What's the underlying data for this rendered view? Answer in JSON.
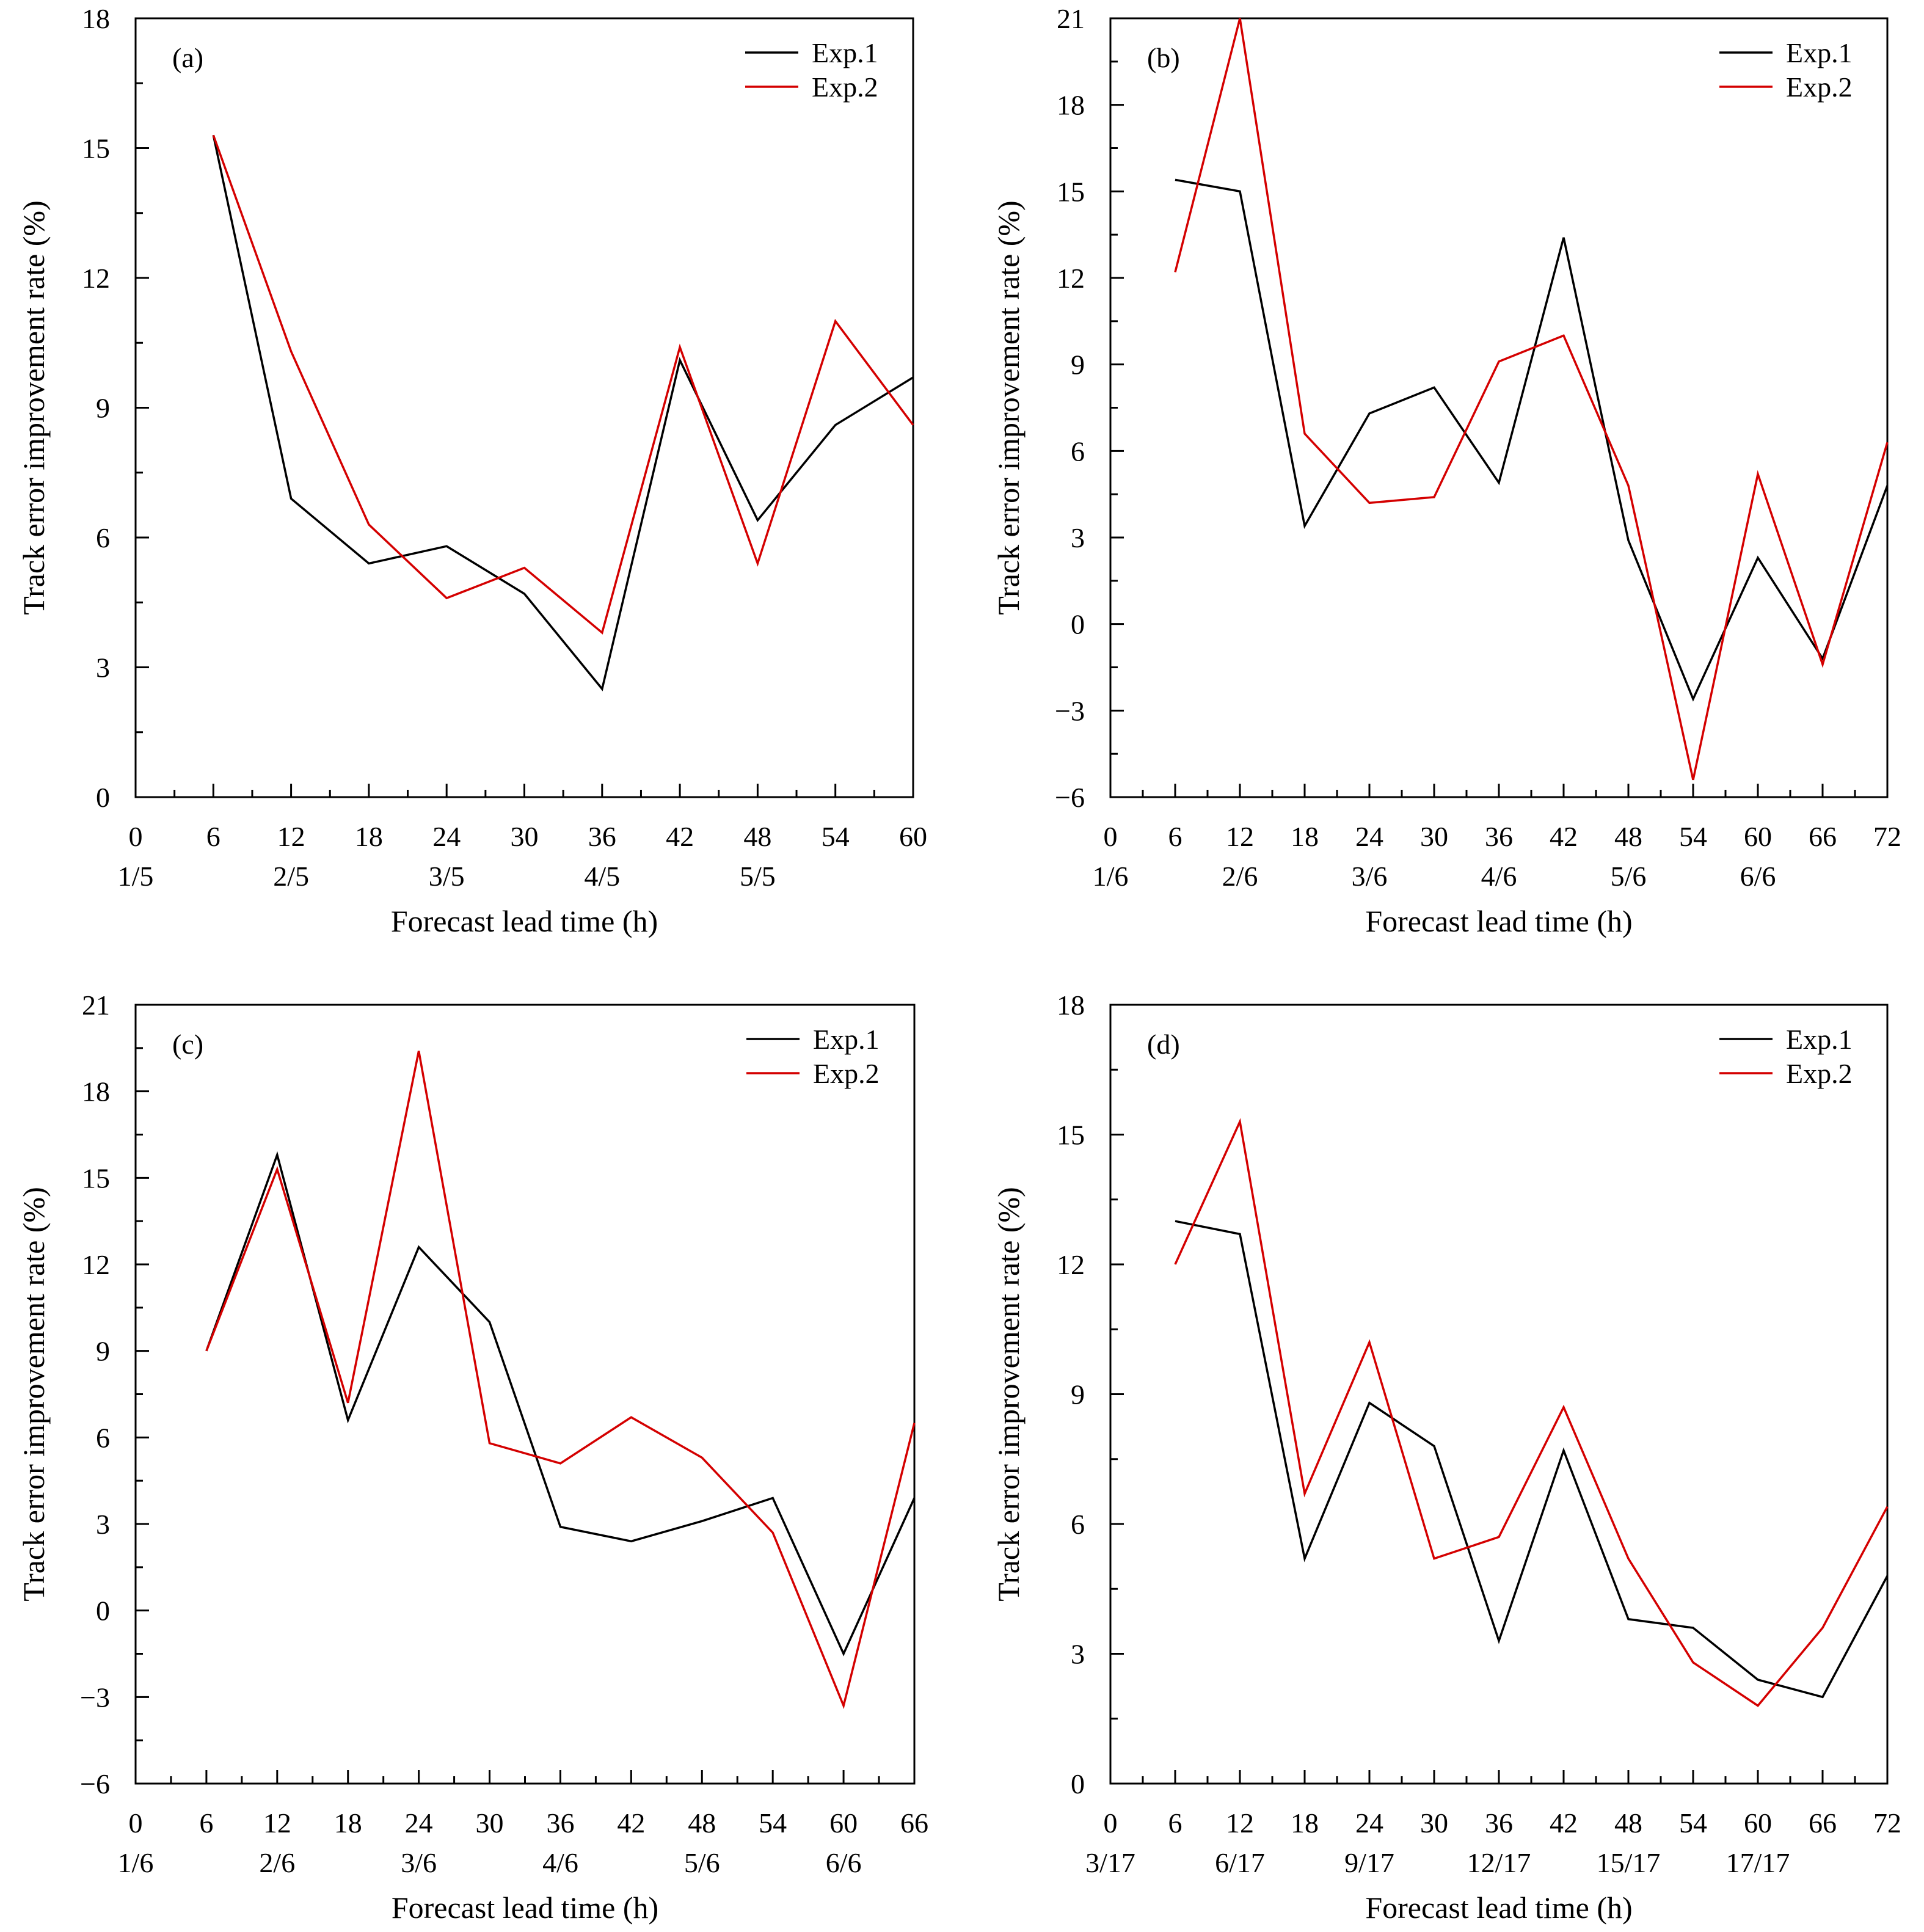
{
  "colors": {
    "exp1": "#000000",
    "exp2": "#d40000",
    "axis": "#000000"
  },
  "chart_data": [
    {
      "type": "line",
      "panel_label": "(a)",
      "xlabel": "Forecast lead time (h)",
      "ylabel": "Track error improvement rate (%)",
      "xlim": [
        0,
        60
      ],
      "ylim": [
        0,
        18
      ],
      "xticks": [
        0,
        6,
        12,
        18,
        24,
        30,
        36,
        42,
        48,
        54,
        60
      ],
      "yticks": [
        0,
        3,
        6,
        9,
        12,
        15,
        18
      ],
      "date_labels": [
        {
          "x": 0,
          "label": "1/5"
        },
        {
          "x": 12,
          "label": "2/5"
        },
        {
          "x": 24,
          "label": "3/5"
        },
        {
          "x": 36,
          "label": "4/5"
        },
        {
          "x": 48,
          "label": "5/5"
        }
      ],
      "legend": "top-right",
      "x": [
        6,
        12,
        18,
        24,
        30,
        36,
        42,
        48,
        54,
        60
      ],
      "series": [
        {
          "name": "Exp.1",
          "color_key": "exp1",
          "values": [
            15.3,
            6.9,
            5.4,
            5.8,
            4.7,
            2.5,
            10.1,
            6.4,
            8.6,
            9.7
          ]
        },
        {
          "name": "Exp.2",
          "color_key": "exp2",
          "values": [
            15.3,
            10.3,
            6.3,
            4.6,
            5.3,
            3.8,
            10.4,
            5.4,
            11.0,
            8.6
          ]
        }
      ]
    },
    {
      "type": "line",
      "panel_label": "(b)",
      "xlabel": "Forecast lead time (h)",
      "ylabel": "Track error improvement rate (%)",
      "xlim": [
        0,
        72
      ],
      "ylim": [
        -6,
        21
      ],
      "xticks": [
        0,
        6,
        12,
        18,
        24,
        30,
        36,
        42,
        48,
        54,
        60,
        66,
        72
      ],
      "yticks": [
        -6,
        -3,
        0,
        3,
        6,
        9,
        12,
        15,
        18,
        21
      ],
      "date_labels": [
        {
          "x": 0,
          "label": "1/6"
        },
        {
          "x": 12,
          "label": "2/6"
        },
        {
          "x": 24,
          "label": "3/6"
        },
        {
          "x": 36,
          "label": "4/6"
        },
        {
          "x": 48,
          "label": "5/6"
        },
        {
          "x": 60,
          "label": "6/6"
        }
      ],
      "legend": "top-right",
      "x": [
        6,
        12,
        18,
        24,
        30,
        36,
        42,
        48,
        54,
        60,
        66,
        72
      ],
      "series": [
        {
          "name": "Exp.1",
          "color_key": "exp1",
          "values": [
            15.4,
            15.0,
            3.4,
            7.3,
            8.2,
            4.9,
            13.4,
            2.9,
            -2.6,
            2.3,
            -1.2,
            4.8
          ]
        },
        {
          "name": "Exp.2",
          "color_key": "exp2",
          "values": [
            12.2,
            21.0,
            6.6,
            4.2,
            4.4,
            9.1,
            10.0,
            4.8,
            -5.4,
            5.2,
            -1.4,
            6.3
          ]
        }
      ]
    },
    {
      "type": "line",
      "panel_label": "(c)",
      "xlabel": "Forecast lead time (h)",
      "ylabel": "Track error improvement rate (%)",
      "xlim": [
        0,
        66
      ],
      "ylim": [
        -6,
        21
      ],
      "xticks": [
        0,
        6,
        12,
        18,
        24,
        30,
        36,
        42,
        48,
        54,
        60,
        66
      ],
      "yticks": [
        -6,
        -3,
        0,
        3,
        6,
        9,
        12,
        15,
        18,
        21
      ],
      "date_labels": [
        {
          "x": 0,
          "label": "1/6"
        },
        {
          "x": 12,
          "label": "2/6"
        },
        {
          "x": 24,
          "label": "3/6"
        },
        {
          "x": 36,
          "label": "4/6"
        },
        {
          "x": 48,
          "label": "5/6"
        },
        {
          "x": 60,
          "label": "6/6"
        }
      ],
      "legend": "top-right",
      "x": [
        6,
        12,
        18,
        24,
        30,
        36,
        42,
        48,
        54,
        60,
        66
      ],
      "series": [
        {
          "name": "Exp.1",
          "color_key": "exp1",
          "values": [
            9.0,
            15.8,
            6.6,
            12.6,
            10.0,
            2.9,
            2.4,
            3.1,
            3.9,
            -1.5,
            3.9
          ]
        },
        {
          "name": "Exp.2",
          "color_key": "exp2",
          "values": [
            9.0,
            15.3,
            7.2,
            19.4,
            5.8,
            5.1,
            6.7,
            5.3,
            2.7,
            -3.3,
            6.5
          ]
        }
      ]
    },
    {
      "type": "line",
      "panel_label": "(d)",
      "xlabel": "Forecast lead time (h)",
      "ylabel": "Track error improvement rate (%)",
      "xlim": [
        0,
        72
      ],
      "ylim": [
        0,
        18
      ],
      "xticks": [
        0,
        6,
        12,
        18,
        24,
        30,
        36,
        42,
        48,
        54,
        60,
        66,
        72
      ],
      "yticks": [
        0,
        3,
        6,
        9,
        12,
        15,
        18
      ],
      "date_labels": [
        {
          "x": 0,
          "label": "3/17"
        },
        {
          "x": 12,
          "label": "6/17"
        },
        {
          "x": 24,
          "label": "9/17"
        },
        {
          "x": 36,
          "label": "12/17"
        },
        {
          "x": 48,
          "label": "15/17"
        },
        {
          "x": 60,
          "label": "17/17"
        }
      ],
      "legend": "top-right",
      "x": [
        6,
        12,
        18,
        24,
        30,
        36,
        42,
        48,
        54,
        60,
        66,
        72
      ],
      "series": [
        {
          "name": "Exp.1",
          "color_key": "exp1",
          "values": [
            13.0,
            12.7,
            5.2,
            8.8,
            7.8,
            3.3,
            7.7,
            3.8,
            3.6,
            2.4,
            2.0,
            4.8
          ]
        },
        {
          "name": "Exp.2",
          "color_key": "exp2",
          "values": [
            12.0,
            15.3,
            6.7,
            10.2,
            5.2,
            5.7,
            8.7,
            5.2,
            2.8,
            1.8,
            3.6,
            6.4
          ]
        }
      ]
    }
  ]
}
